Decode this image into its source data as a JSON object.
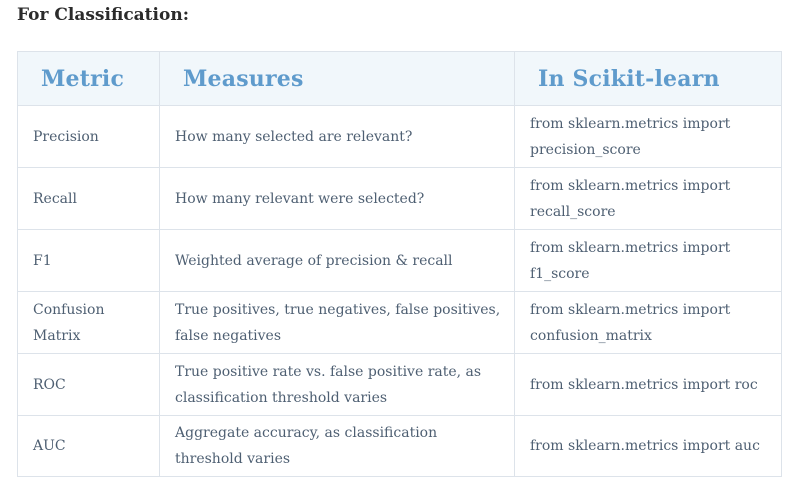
{
  "heading": "For Classification:",
  "table": {
    "headers": [
      "Metric",
      "Measures",
      "In Scikit-learn"
    ],
    "rows": [
      {
        "metric": "Precision",
        "measures": "How many selected are relevant?",
        "sklearn": [
          "from sklearn.metrics import",
          "precision_score"
        ]
      },
      {
        "metric": "Recall",
        "measures": "How many relevant were selected?",
        "sklearn": [
          "from sklearn.metrics import",
          "recall_score"
        ]
      },
      {
        "metric": "F1",
        "measures": "Weighted average of precision & recall",
        "sklearn": [
          "from sklearn.metrics import",
          "f1_score"
        ]
      },
      {
        "metric": [
          "Confusion",
          "Matrix"
        ],
        "measures": [
          "True positives, true negatives, false positives,",
          "false negatives"
        ],
        "sklearn": [
          "from sklearn.metrics import",
          "confusion_matrix"
        ]
      },
      {
        "metric": "ROC",
        "measures": [
          "True positive rate vs. false positive rate, as",
          "classification threshold varies"
        ],
        "sklearn": "from sklearn.metrics import roc"
      },
      {
        "metric": "AUC",
        "measures": [
          "Aggregate accuracy, as classification",
          "threshold varies"
        ],
        "sklearn": "from sklearn.metrics import auc"
      }
    ]
  }
}
